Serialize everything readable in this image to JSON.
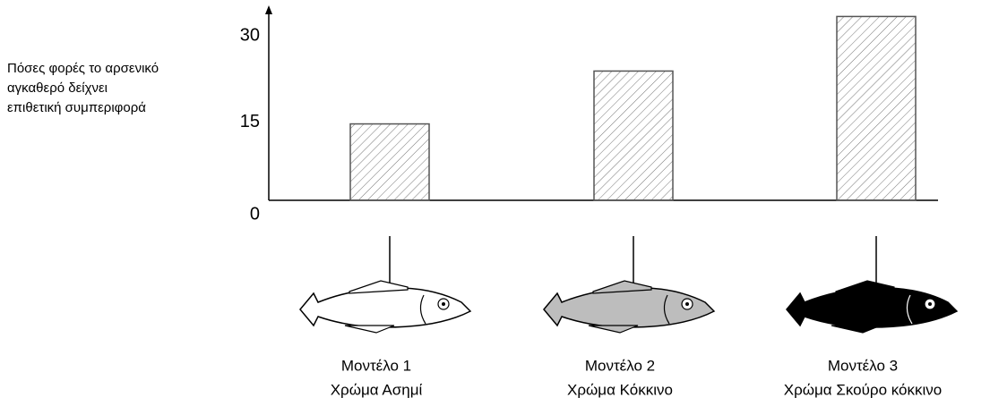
{
  "chart_data": {
    "type": "bar",
    "y_label_lines": [
      "Πόσες φορές το αρσενικό",
      "αγκαθερό δείχνει",
      "επιθετική συμπεριφορά"
    ],
    "categories": [
      "Μοντέλο 1",
      "Μοντέλο 2",
      "Μοντέλο 3"
    ],
    "category_sublabels": [
      "Χρώμα Ασημί",
      "Χρώμα Κόκκινο",
      "Χρώμα Σκούρο κόκκινο"
    ],
    "values": [
      13.3,
      22.5,
      32
    ],
    "ylim": [
      0,
      33
    ],
    "yticks": [
      0,
      15,
      30
    ],
    "color": "#555555",
    "grid": false,
    "fish_fills": [
      "#ffffff",
      "#bdbdbd",
      "#000000"
    ]
  }
}
